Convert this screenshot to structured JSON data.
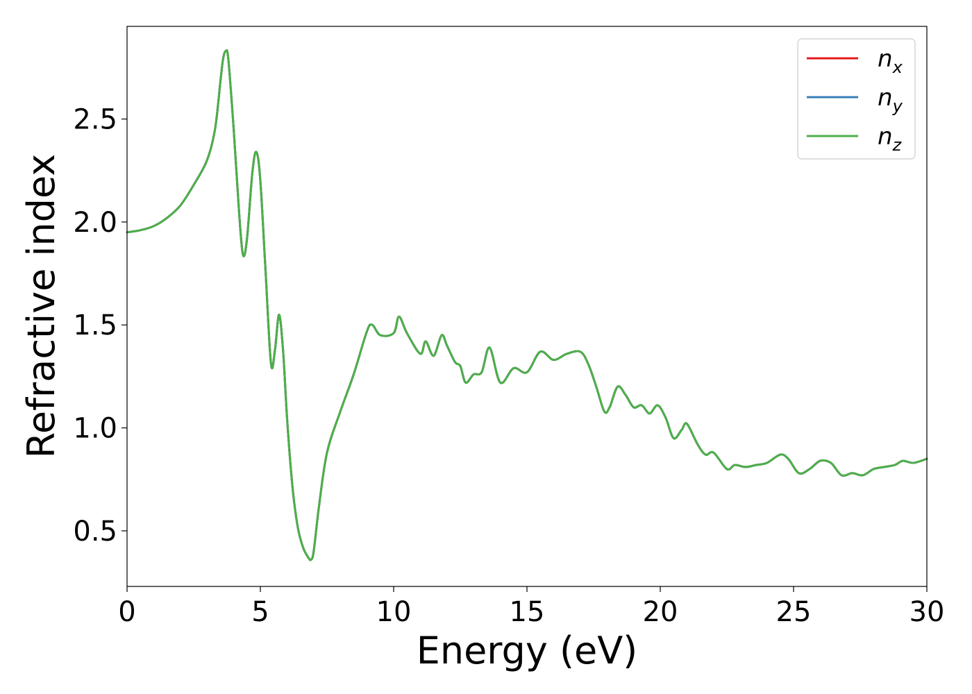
{
  "chart_data": {
    "type": "line",
    "title": "",
    "xlabel": "Energy (eV)",
    "ylabel": "Refractive index",
    "xlim": [
      0,
      30
    ],
    "ylim": [
      0.23,
      2.95
    ],
    "xticks": [
      0,
      5,
      10,
      15,
      20,
      25,
      30
    ],
    "yticks": [
      0.5,
      1.0,
      1.5,
      2.0,
      2.5
    ],
    "xtick_labels": [
      "0",
      "5",
      "10",
      "15",
      "20",
      "25",
      "30"
    ],
    "ytick_labels": [
      "0.5",
      "1.0",
      "1.5",
      "2.0",
      "2.5"
    ],
    "grid": false,
    "legend_position": "top-right",
    "series": [
      {
        "name": "n_x",
        "label_base": "n",
        "label_sub": "x",
        "color": "#e41a1c",
        "x": [
          0,
          0.5,
          1.0,
          1.5,
          2.0,
          2.5,
          3.0,
          3.3,
          3.5,
          3.6,
          3.7,
          3.8,
          4.0,
          4.2,
          4.35,
          4.5,
          4.7,
          4.85,
          5.0,
          5.2,
          5.4,
          5.55,
          5.7,
          5.85,
          6.0,
          6.2,
          6.4,
          6.6,
          6.8,
          6.9,
          7.0,
          7.2,
          7.5,
          8.0,
          8.5,
          9.0,
          9.2,
          9.5,
          10.0,
          10.2,
          10.5,
          11.0,
          11.2,
          11.5,
          11.8,
          12.0,
          12.3,
          12.5,
          12.7,
          13.0,
          13.3,
          13.6,
          14.0,
          14.5,
          15.0,
          15.5,
          16.0,
          16.5,
          17.0,
          17.3,
          17.6,
          17.9,
          18.1,
          18.4,
          18.7,
          19.0,
          19.3,
          19.6,
          19.9,
          20.2,
          20.5,
          20.8,
          21.0,
          21.4,
          21.7,
          22.0,
          22.5,
          22.8,
          23.2,
          23.6,
          24.0,
          24.5,
          24.8,
          25.2,
          25.6,
          26.0,
          26.4,
          26.8,
          27.2,
          27.6,
          28.0,
          28.4,
          28.8,
          29.1,
          29.5,
          30.0
        ],
        "y": [
          1.95,
          1.96,
          1.98,
          2.02,
          2.08,
          2.18,
          2.3,
          2.45,
          2.68,
          2.79,
          2.83,
          2.79,
          2.45,
          2.05,
          1.84,
          1.92,
          2.24,
          2.34,
          2.2,
          1.75,
          1.31,
          1.38,
          1.55,
          1.38,
          1.05,
          0.72,
          0.52,
          0.42,
          0.37,
          0.36,
          0.4,
          0.62,
          0.88,
          1.08,
          1.26,
          1.47,
          1.5,
          1.45,
          1.46,
          1.54,
          1.46,
          1.36,
          1.42,
          1.35,
          1.45,
          1.4,
          1.32,
          1.3,
          1.22,
          1.26,
          1.27,
          1.39,
          1.22,
          1.29,
          1.27,
          1.37,
          1.33,
          1.36,
          1.37,
          1.31,
          1.2,
          1.08,
          1.1,
          1.2,
          1.16,
          1.1,
          1.11,
          1.07,
          1.11,
          1.05,
          0.95,
          0.99,
          1.02,
          0.92,
          0.87,
          0.88,
          0.8,
          0.82,
          0.81,
          0.82,
          0.83,
          0.87,
          0.85,
          0.78,
          0.8,
          0.84,
          0.83,
          0.77,
          0.78,
          0.77,
          0.8,
          0.81,
          0.82,
          0.84,
          0.83,
          0.85
        ]
      },
      {
        "name": "n_y",
        "label_base": "n",
        "label_sub": "y",
        "color": "#377eb8",
        "x": [
          0,
          0.5,
          1.0,
          1.5,
          2.0,
          2.5,
          3.0,
          3.3,
          3.5,
          3.6,
          3.7,
          3.8,
          4.0,
          4.2,
          4.35,
          4.5,
          4.7,
          4.85,
          5.0,
          5.2,
          5.4,
          5.55,
          5.7,
          5.85,
          6.0,
          6.2,
          6.4,
          6.6,
          6.8,
          6.9,
          7.0,
          7.2,
          7.5,
          8.0,
          8.5,
          9.0,
          9.2,
          9.5,
          10.0,
          10.2,
          10.5,
          11.0,
          11.2,
          11.5,
          11.8,
          12.0,
          12.3,
          12.5,
          12.7,
          13.0,
          13.3,
          13.6,
          14.0,
          14.5,
          15.0,
          15.5,
          16.0,
          16.5,
          17.0,
          17.3,
          17.6,
          17.9,
          18.1,
          18.4,
          18.7,
          19.0,
          19.3,
          19.6,
          19.9,
          20.2,
          20.5,
          20.8,
          21.0,
          21.4,
          21.7,
          22.0,
          22.5,
          22.8,
          23.2,
          23.6,
          24.0,
          24.5,
          24.8,
          25.2,
          25.6,
          26.0,
          26.4,
          26.8,
          27.2,
          27.6,
          28.0,
          28.4,
          28.8,
          29.1,
          29.5,
          30.0
        ],
        "y": [
          1.95,
          1.96,
          1.98,
          2.02,
          2.08,
          2.18,
          2.3,
          2.45,
          2.68,
          2.79,
          2.83,
          2.79,
          2.45,
          2.05,
          1.84,
          1.92,
          2.24,
          2.34,
          2.2,
          1.75,
          1.31,
          1.38,
          1.55,
          1.38,
          1.05,
          0.72,
          0.52,
          0.42,
          0.37,
          0.36,
          0.4,
          0.62,
          0.88,
          1.08,
          1.26,
          1.47,
          1.5,
          1.45,
          1.46,
          1.54,
          1.46,
          1.36,
          1.42,
          1.35,
          1.45,
          1.4,
          1.32,
          1.3,
          1.22,
          1.26,
          1.27,
          1.39,
          1.22,
          1.29,
          1.27,
          1.37,
          1.33,
          1.36,
          1.37,
          1.31,
          1.2,
          1.08,
          1.1,
          1.2,
          1.16,
          1.1,
          1.11,
          1.07,
          1.11,
          1.05,
          0.95,
          0.99,
          1.02,
          0.92,
          0.87,
          0.88,
          0.8,
          0.82,
          0.81,
          0.82,
          0.83,
          0.87,
          0.85,
          0.78,
          0.8,
          0.84,
          0.83,
          0.77,
          0.78,
          0.77,
          0.8,
          0.81,
          0.82,
          0.84,
          0.83,
          0.85
        ]
      },
      {
        "name": "n_z",
        "label_base": "n",
        "label_sub": "z",
        "color": "#4daf4a",
        "x": [
          0,
          0.5,
          1.0,
          1.5,
          2.0,
          2.5,
          3.0,
          3.3,
          3.5,
          3.6,
          3.7,
          3.8,
          4.0,
          4.2,
          4.35,
          4.5,
          4.7,
          4.85,
          5.0,
          5.2,
          5.4,
          5.55,
          5.7,
          5.85,
          6.0,
          6.2,
          6.4,
          6.6,
          6.8,
          6.9,
          7.0,
          7.2,
          7.5,
          8.0,
          8.5,
          9.0,
          9.2,
          9.5,
          10.0,
          10.2,
          10.5,
          11.0,
          11.2,
          11.5,
          11.8,
          12.0,
          12.3,
          12.5,
          12.7,
          13.0,
          13.3,
          13.6,
          14.0,
          14.5,
          15.0,
          15.5,
          16.0,
          16.5,
          17.0,
          17.3,
          17.6,
          17.9,
          18.1,
          18.4,
          18.7,
          19.0,
          19.3,
          19.6,
          19.9,
          20.2,
          20.5,
          20.8,
          21.0,
          21.4,
          21.7,
          22.0,
          22.5,
          22.8,
          23.2,
          23.6,
          24.0,
          24.5,
          24.8,
          25.2,
          25.6,
          26.0,
          26.4,
          26.8,
          27.2,
          27.6,
          28.0,
          28.4,
          28.8,
          29.1,
          29.5,
          30.0
        ],
        "y": [
          1.95,
          1.96,
          1.98,
          2.02,
          2.08,
          2.18,
          2.3,
          2.45,
          2.68,
          2.79,
          2.83,
          2.79,
          2.45,
          2.05,
          1.84,
          1.92,
          2.24,
          2.34,
          2.2,
          1.75,
          1.31,
          1.38,
          1.55,
          1.38,
          1.05,
          0.72,
          0.52,
          0.42,
          0.37,
          0.36,
          0.4,
          0.62,
          0.88,
          1.08,
          1.26,
          1.47,
          1.5,
          1.45,
          1.46,
          1.54,
          1.46,
          1.36,
          1.42,
          1.35,
          1.45,
          1.4,
          1.32,
          1.3,
          1.22,
          1.26,
          1.27,
          1.39,
          1.22,
          1.29,
          1.27,
          1.37,
          1.33,
          1.36,
          1.37,
          1.31,
          1.2,
          1.08,
          1.1,
          1.2,
          1.16,
          1.1,
          1.11,
          1.07,
          1.11,
          1.05,
          0.95,
          0.99,
          1.02,
          0.92,
          0.87,
          0.88,
          0.8,
          0.82,
          0.81,
          0.82,
          0.83,
          0.87,
          0.85,
          0.78,
          0.8,
          0.84,
          0.83,
          0.77,
          0.78,
          0.77,
          0.8,
          0.81,
          0.82,
          0.84,
          0.83,
          0.85
        ]
      }
    ]
  }
}
